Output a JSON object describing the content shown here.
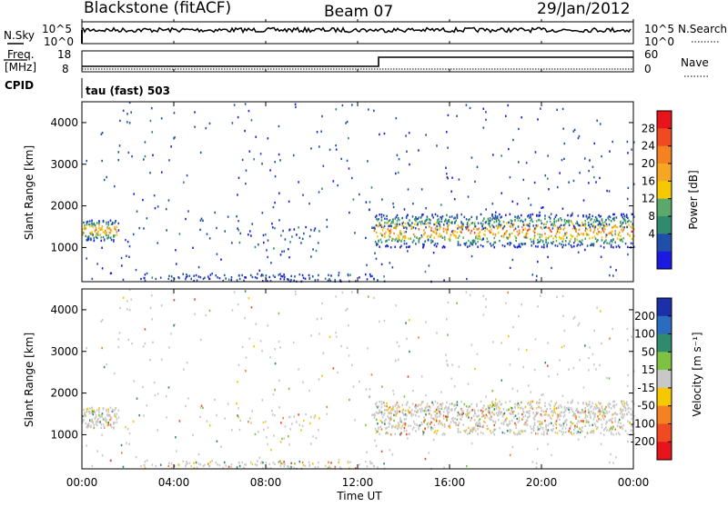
{
  "header": {
    "station": "Blackstone (fitACF)",
    "beam": "Beam 07",
    "date": "29/Jan/2012"
  },
  "top_panels": {
    "nsky_label": "N.Sky",
    "nsearch_label": "N.Search",
    "noise_ticks": [
      "10^5",
      "10^0"
    ],
    "freq_label": "Freq.",
    "freq_unit": "[MHz]",
    "freq_ticks": [
      "18",
      "8"
    ],
    "nave_label": "Nave",
    "nave_ticks": [
      "60",
      "0"
    ],
    "cpid_label": "CPID",
    "cpid_value": "tau (fast) 503"
  },
  "chart_data": [
    {
      "type": "heatmap",
      "panel": "power",
      "ylabel": "Slant Range [km]",
      "ylim": [
        180,
        4500
      ],
      "yticks": [
        1000,
        2000,
        3000,
        4000
      ],
      "xlim_hours": [
        0,
        24
      ],
      "colorbar": {
        "label": "Power [dB]",
        "ticks": [
          "28",
          "24",
          "20",
          "16",
          "12",
          "8",
          "4"
        ],
        "colors": [
          "#e8141c",
          "#f04a22",
          "#f58220",
          "#f5a623",
          "#f5c800",
          "#5aa86a",
          "#2f8a6e",
          "#1f4fa8",
          "#1a1ae0"
        ]
      },
      "bands": [
        {
          "start_hour": 0.0,
          "end_hour": 1.5,
          "range_low_km": 1150,
          "range_high_km": 1650
        },
        {
          "start_hour": 6.7,
          "end_hour": 10.3,
          "range_low_km": 900,
          "range_high_km": 1500
        },
        {
          "start_hour": 12.7,
          "end_hour": 24.0,
          "range_low_km": 1000,
          "range_high_km": 1800
        }
      ]
    },
    {
      "type": "heatmap",
      "panel": "velocity",
      "ylabel": "Slant Range [km]",
      "ylim": [
        180,
        4500
      ],
      "yticks": [
        1000,
        2000,
        3000,
        4000
      ],
      "xlim_hours": [
        0,
        24
      ],
      "xticks": [
        "00:00",
        "04:00",
        "08:00",
        "12:00",
        "16:00",
        "20:00",
        "00:00"
      ],
      "xlabel": "Time UT",
      "colorbar": {
        "label": "Velocity [m s⁻¹]",
        "ticks": [
          "200",
          "100",
          "50",
          "15",
          "-15",
          "-50",
          "-100",
          "-200"
        ],
        "colors": [
          "#1a2fa8",
          "#2b6cc0",
          "#2f8a6e",
          "#7dc242",
          "#c8c8c8",
          "#f5c800",
          "#f58220",
          "#f04a22",
          "#e8141c"
        ]
      }
    }
  ]
}
